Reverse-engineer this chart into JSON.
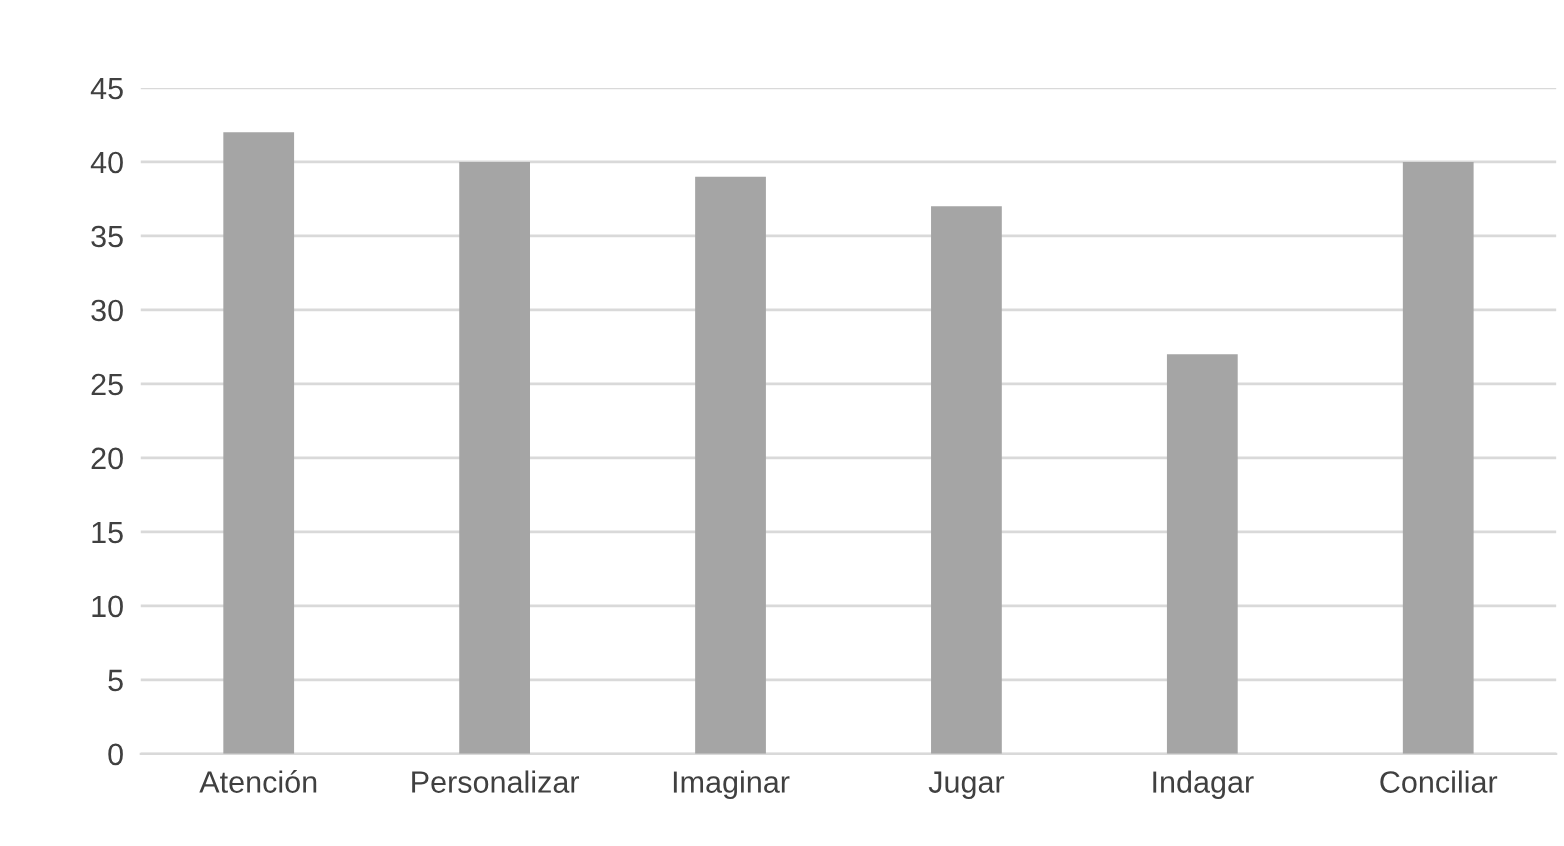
{
  "chart_data": {
    "type": "bar",
    "categories": [
      "Atención",
      "Personalizar",
      "Imaginar",
      "Jugar",
      "Indagar",
      "Conciliar"
    ],
    "values": [
      42,
      40,
      39,
      37,
      27,
      40
    ],
    "color": "#a5a5a5",
    "ylim": [
      0,
      45
    ],
    "yticks": [
      0,
      5,
      10,
      15,
      20,
      25,
      30,
      35,
      40,
      45
    ],
    "grid": "y"
  }
}
